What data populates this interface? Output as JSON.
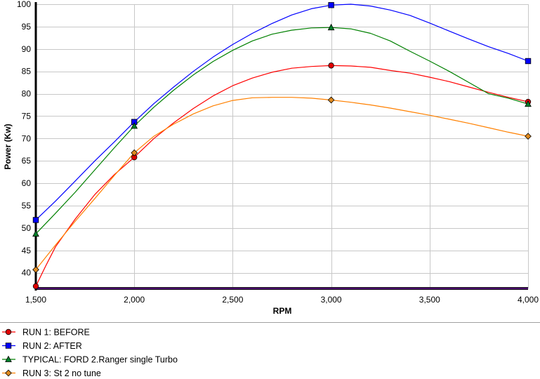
{
  "chart_data": {
    "type": "line",
    "xlabel": "RPM",
    "ylabel": "Power (Kw)",
    "xlim": [
      1500,
      4000
    ],
    "ylim": [
      36.5,
      100
    ],
    "x_ticks": [
      1500,
      2000,
      2500,
      3000,
      3500,
      4000
    ],
    "x_tick_labels": [
      "1,500",
      "2,000",
      "2,500",
      "3,000",
      "3,500",
      "4,000"
    ],
    "y_ticks": [
      40,
      45,
      50,
      55,
      60,
      65,
      70,
      75,
      80,
      85,
      90,
      95,
      100
    ],
    "y_tick_labels": [
      "40",
      "45",
      "50",
      "55",
      "60",
      "65",
      "70",
      "75",
      "80",
      "85",
      "90",
      "95",
      "100"
    ],
    "grid": true,
    "legend_position": "bottom-left",
    "series": [
      {
        "name": "RUN 1: BEFORE",
        "color": "#ff0000",
        "marker": "circle",
        "marker_color": "#e00000",
        "x": [
          1500,
          1550,
          1600,
          1700,
          1800,
          1900,
          2000,
          2100,
          2200,
          2300,
          2400,
          2500,
          2600,
          2700,
          2800,
          2900,
          3000,
          3100,
          3200,
          3300,
          3400,
          3500,
          3600,
          3700,
          3800,
          3900,
          4000
        ],
        "y": [
          37.0,
          41.5,
          45.8,
          52.0,
          57.5,
          62.0,
          65.8,
          70.0,
          73.5,
          76.7,
          79.5,
          81.8,
          83.5,
          84.8,
          85.7,
          86.1,
          86.3,
          86.2,
          85.9,
          85.2,
          84.6,
          83.7,
          82.7,
          81.5,
          80.3,
          79.2,
          78.2
        ],
        "markers_x": [
          1500,
          2000,
          3000,
          4000
        ],
        "markers_y": [
          37.0,
          65.8,
          86.3,
          78.2
        ]
      },
      {
        "name": "RUN 2: AFTER",
        "color": "#0000ff",
        "marker": "square",
        "marker_color": "#0000ff",
        "x": [
          1500,
          1600,
          1700,
          1800,
          1900,
          2000,
          2100,
          2200,
          2300,
          2400,
          2500,
          2600,
          2700,
          2800,
          2900,
          3000,
          3100,
          3200,
          3300,
          3400,
          3500,
          3600,
          3700,
          3800,
          3900,
          4000
        ],
        "y": [
          51.8,
          56.0,
          60.5,
          65.0,
          69.3,
          73.7,
          77.8,
          81.5,
          85.0,
          88.2,
          91.0,
          93.5,
          95.7,
          97.6,
          99.0,
          99.8,
          100.0,
          99.6,
          98.7,
          97.5,
          95.8,
          94.0,
          92.2,
          90.5,
          89.0,
          87.3
        ],
        "markers_x": [
          1500,
          2000,
          3000,
          4000
        ],
        "markers_y": [
          51.8,
          73.7,
          99.8,
          87.3
        ]
      },
      {
        "name": "TYPICAL: FORD 2.Ranger single Turbo",
        "color": "#008000",
        "marker": "triangle",
        "marker_color": "#00802a",
        "x": [
          1500,
          1600,
          1700,
          1800,
          1900,
          2000,
          2100,
          2200,
          2300,
          2400,
          2500,
          2600,
          2700,
          2800,
          2900,
          3000,
          3100,
          3200,
          3300,
          3400,
          3500,
          3600,
          3700,
          3800,
          3900,
          4000
        ],
        "y": [
          48.7,
          53.3,
          58.0,
          63.0,
          68.0,
          72.8,
          77.0,
          80.8,
          84.2,
          87.2,
          89.7,
          91.8,
          93.3,
          94.2,
          94.7,
          94.8,
          94.5,
          93.5,
          91.8,
          89.5,
          87.3,
          85.0,
          82.5,
          80.0,
          79.0,
          77.7
        ],
        "markers_x": [
          1500,
          2000,
          3000,
          4000
        ],
        "markers_y": [
          48.7,
          72.8,
          94.8,
          77.7
        ]
      },
      {
        "name": "RUN 3: St 2 no tune",
        "color": "#ff8000",
        "marker": "diamond",
        "marker_color": "#e08a1e",
        "x": [
          1500,
          1600,
          1700,
          1800,
          1900,
          2000,
          2100,
          2200,
          2300,
          2400,
          2500,
          2600,
          2700,
          2800,
          2900,
          3000,
          3100,
          3200,
          3300,
          3400,
          3500,
          3600,
          3700,
          3800,
          3900,
          4000
        ],
        "y": [
          40.7,
          46.2,
          51.5,
          56.6,
          61.8,
          66.8,
          70.5,
          73.2,
          75.5,
          77.3,
          78.5,
          79.1,
          79.2,
          79.2,
          79.0,
          78.6,
          78.1,
          77.5,
          76.8,
          76.0,
          75.2,
          74.3,
          73.4,
          72.4,
          71.4,
          70.5
        ],
        "markers_x": [
          1500,
          2000,
          3000,
          4000
        ],
        "markers_y": [
          40.7,
          66.8,
          78.6,
          70.5
        ]
      }
    ]
  }
}
